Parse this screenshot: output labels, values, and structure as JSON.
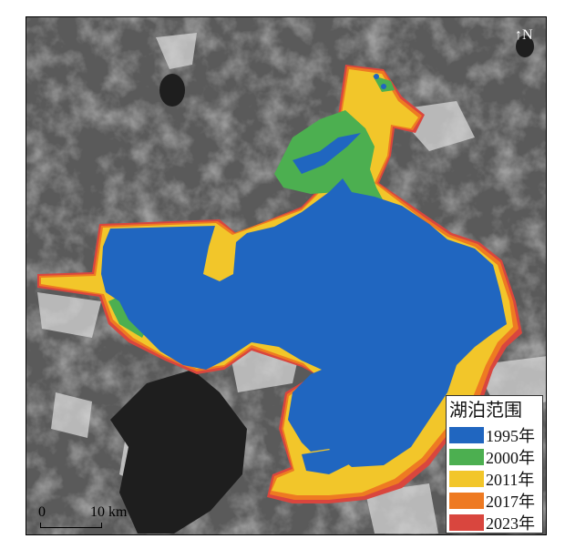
{
  "legend": {
    "title": "湖泊范围",
    "items": [
      {
        "label": "1995年",
        "color": "#2066c0"
      },
      {
        "label": "2000年",
        "color": "#4caf50"
      },
      {
        "label": "2011年",
        "color": "#f2c62a"
      },
      {
        "label": "2017年",
        "color": "#ee7a22"
      },
      {
        "label": "2023年",
        "color": "#d9463e"
      }
    ]
  },
  "north_arrow": "N",
  "scale_bar": {
    "start": "0",
    "end": "10 km"
  }
}
